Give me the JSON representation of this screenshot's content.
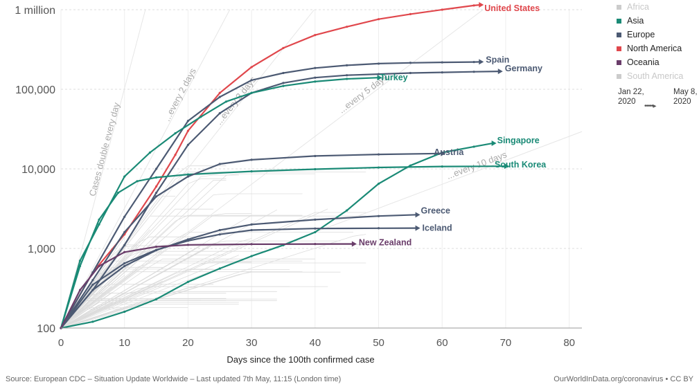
{
  "footer": {
    "source": "Source: European CDC – Situation Update Worldwide – Last updated 7th May, 11:15 (London time)",
    "credit": "OurWorldInData.org/coronavirus • CC BY"
  },
  "legend": {
    "items": [
      {
        "label": "Africa",
        "color": "#cccccc",
        "faded": true
      },
      {
        "label": "Asia",
        "color": "#1a8a76",
        "faded": false
      },
      {
        "label": "Europe",
        "color": "#4c5a73",
        "faded": false
      },
      {
        "label": "North America",
        "color": "#e0474c",
        "faded": false
      },
      {
        "label": "Oceania",
        "color": "#6a3d6a",
        "faded": false
      },
      {
        "label": "South America",
        "color": "#cccccc",
        "faded": true
      }
    ],
    "time": {
      "start": "Jan 22, 2020",
      "end": "May 8, 2020"
    }
  },
  "chart_data": {
    "type": "line",
    "xlabel": "Days since the 100th confirmed case",
    "ylabel": "",
    "xlim": [
      0,
      82
    ],
    "ylim": [
      100,
      1000000
    ],
    "y_scale": "log",
    "x_ticks": [
      0,
      10,
      20,
      30,
      40,
      50,
      60,
      70,
      80
    ],
    "y_ticks": [
      {
        "value": 100,
        "label": "100"
      },
      {
        "value": 1000,
        "label": "1,000"
      },
      {
        "value": 10000,
        "label": "10,000"
      },
      {
        "value": 100000,
        "label": "100,000"
      },
      {
        "value": 1000000,
        "label": "1 million"
      }
    ],
    "doubling_lines": [
      {
        "label": "Cases double every day",
        "doubling_days": 1
      },
      {
        "label": "...every 2 days",
        "doubling_days": 2
      },
      {
        "label": "...every 3 days",
        "doubling_days": 3
      },
      {
        "label": "...every 5 days",
        "doubling_days": 5
      },
      {
        "label": "...every 10 days",
        "doubling_days": 10
      }
    ],
    "series": [
      {
        "name": "United States",
        "region": "North America",
        "color": "#e0474c",
        "x": [
          0,
          5,
          10,
          15,
          18,
          20,
          25,
          30,
          35,
          40,
          45,
          50,
          55,
          60,
          65,
          66
        ],
        "y": [
          100,
          500,
          1500,
          6000,
          15000,
          30000,
          90000,
          190000,
          330000,
          480000,
          610000,
          760000,
          880000,
          1000000,
          1130000,
          1150000
        ]
      },
      {
        "name": "Spain",
        "region": "Europe",
        "color": "#4c5a73",
        "x": [
          0,
          5,
          10,
          15,
          20,
          25,
          30,
          35,
          40,
          45,
          50,
          55,
          60,
          65,
          66
        ],
        "y": [
          100,
          500,
          2500,
          10000,
          40000,
          80000,
          130000,
          160000,
          185000,
          200000,
          210000,
          215000,
          218000,
          220000,
          221000
        ]
      },
      {
        "name": "Germany",
        "region": "Europe",
        "color": "#4c5a73",
        "x": [
          0,
          5,
          10,
          15,
          20,
          25,
          30,
          35,
          40,
          45,
          50,
          55,
          60,
          65,
          69
        ],
        "y": [
          100,
          300,
          1100,
          5000,
          20000,
          50000,
          90000,
          120000,
          140000,
          150000,
          155000,
          160000,
          163000,
          166000,
          168000
        ]
      },
      {
        "name": "Turkey",
        "region": "Asia",
        "color": "#1a8a76",
        "x": [
          0,
          3,
          6,
          10,
          14,
          18,
          22,
          26,
          30,
          35,
          40,
          45,
          50
        ],
        "y": [
          100,
          700,
          2000,
          8000,
          16000,
          28000,
          45000,
          70000,
          90000,
          110000,
          125000,
          135000,
          140000
        ]
      },
      {
        "name": "Singapore",
        "region": "Asia",
        "color": "#1a8a76",
        "x": [
          0,
          5,
          10,
          15,
          20,
          25,
          30,
          35,
          40,
          45,
          50,
          55,
          60,
          65,
          68
        ],
        "y": [
          100,
          120,
          160,
          230,
          380,
          560,
          800,
          1100,
          1600,
          3000,
          6500,
          11000,
          16000,
          19000,
          21000
        ]
      },
      {
        "name": "South Korea",
        "region": "Asia",
        "color": "#1a8a76",
        "x": [
          0,
          3,
          6,
          9,
          12,
          15,
          20,
          30,
          40,
          50,
          60,
          70
        ],
        "y": [
          100,
          600,
          2300,
          5000,
          7000,
          7800,
          8500,
          9300,
          9900,
          10400,
          10700,
          10800
        ]
      },
      {
        "name": "Austria",
        "region": "Europe",
        "color": "#4c5a73",
        "x": [
          0,
          5,
          10,
          15,
          20,
          25,
          30,
          40,
          50,
          60
        ],
        "y": [
          100,
          400,
          1600,
          4500,
          8000,
          11500,
          13000,
          14500,
          15200,
          15600
        ]
      },
      {
        "name": "Greece",
        "region": "Europe",
        "color": "#4c5a73",
        "x": [
          0,
          5,
          10,
          15,
          20,
          25,
          30,
          40,
          50,
          56
        ],
        "y": [
          100,
          300,
          600,
          950,
          1300,
          1700,
          2000,
          2300,
          2550,
          2650
        ]
      },
      {
        "name": "Iceland",
        "region": "Europe",
        "color": "#4c5a73",
        "x": [
          0,
          5,
          10,
          15,
          20,
          25,
          30,
          40,
          50,
          56
        ],
        "y": [
          100,
          350,
          650,
          960,
          1250,
          1500,
          1700,
          1780,
          1795,
          1800
        ]
      },
      {
        "name": "New Zealand",
        "region": "Oceania",
        "color": "#6a3d6a",
        "x": [
          0,
          3,
          6,
          10,
          15,
          20,
          30,
          40,
          46
        ],
        "y": [
          100,
          300,
          600,
          900,
          1050,
          1110,
          1130,
          1137,
          1140
        ]
      }
    ]
  }
}
